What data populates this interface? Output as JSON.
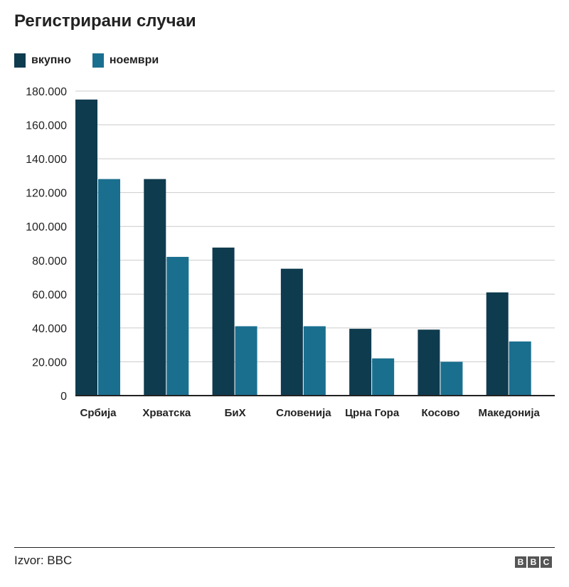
{
  "chart_data": {
    "type": "bar",
    "title": "Регистрирани случаи",
    "categories": [
      "Србија",
      "Хрватска",
      "БиХ",
      "Словенија",
      "Црна Гора",
      "Косово",
      "Македонија"
    ],
    "series": [
      {
        "name": "вкупно",
        "color": "#0f3b4f",
        "values": [
          175000,
          128000,
          87500,
          75000,
          39500,
          39000,
          61000
        ]
      },
      {
        "name": "ноември",
        "color": "#1a6f8f",
        "values": [
          128000,
          82000,
          41000,
          41000,
          22000,
          20000,
          32000
        ]
      }
    ],
    "yticks": [
      "0",
      "20.000",
      "40.000",
      "60.000",
      "80.000",
      "100.000",
      "120.000",
      "140.000",
      "160.000",
      "180.000"
    ],
    "ylim": [
      0,
      180000
    ],
    "grid": true,
    "legend_position": "top-left"
  },
  "footer": {
    "source": "Izvor: BBC",
    "logo_letters": [
      "B",
      "B",
      "C"
    ]
  }
}
